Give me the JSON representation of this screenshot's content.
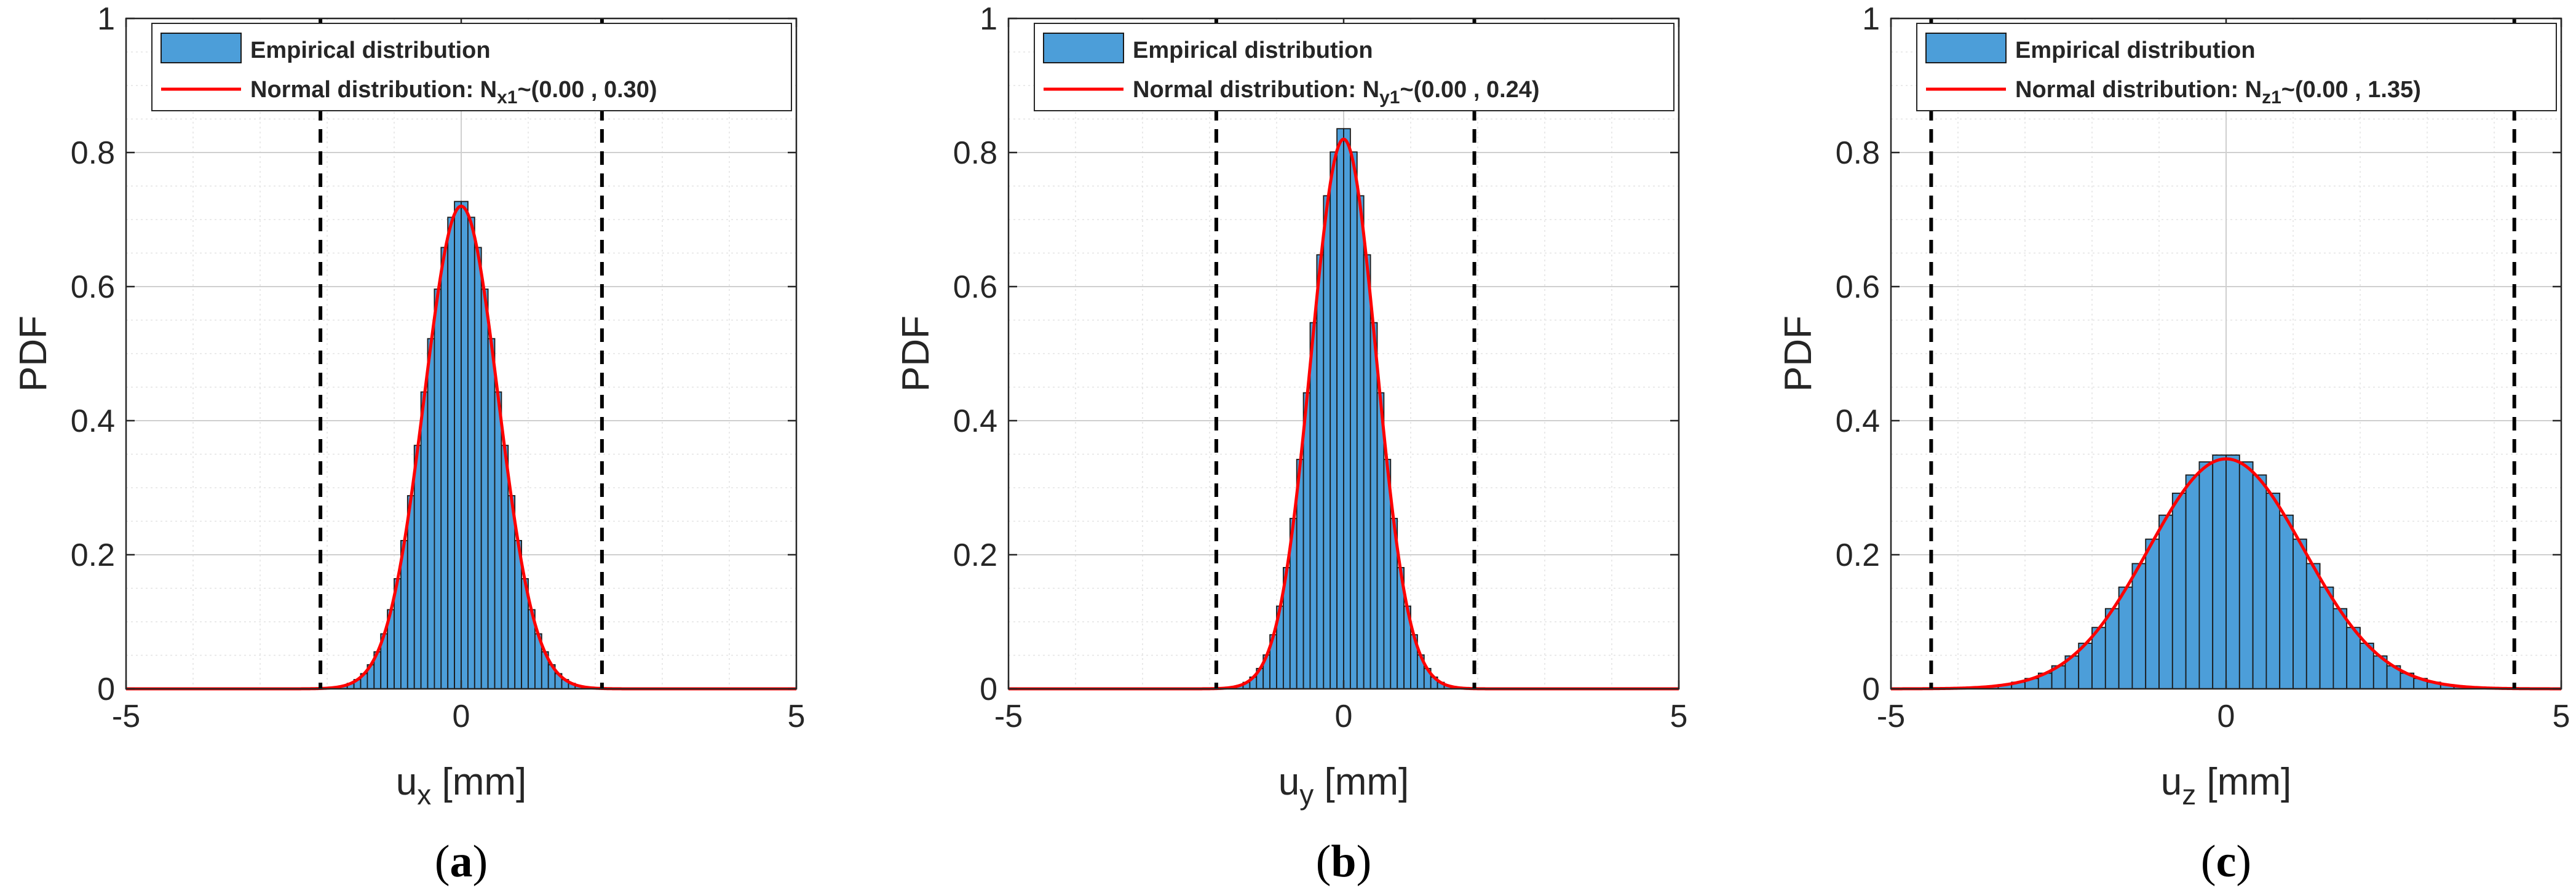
{
  "chart_data": [
    {
      "panel_label_open": "(",
      "panel_letter": "a",
      "panel_label_close": ")",
      "type": "bar",
      "title": "",
      "xlabel_main": "u",
      "xlabel_sub": "x",
      "xlabel_unit": " [mm]",
      "ylabel": "PDF",
      "xlim": [
        -5,
        5
      ],
      "ylim": [
        0,
        1
      ],
      "xticks": [
        -5,
        0,
        5
      ],
      "yticks": [
        0,
        0.2,
        0.4,
        0.6,
        0.8,
        1
      ],
      "xtick_labels": [
        "-5",
        "0",
        "5"
      ],
      "ytick_labels": [
        "0",
        "0.2",
        "0.4",
        "0.6",
        "0.8",
        "1"
      ],
      "grid": true,
      "legend_position": "top-right",
      "legend": {
        "hist_label": "Empirical distribution",
        "line_label_prefix": "Normal distribution: N",
        "line_label_sub": "x1",
        "line_label_suffix": "~(0.00 , 0.30)"
      },
      "histogram": {
        "mean": 0.0,
        "std": 0.55,
        "amplitude": 0.73,
        "bin_width": 0.1,
        "range": [
          -2.0,
          2.0
        ],
        "hist_color": "#4C9ED9",
        "edge_color": "#1a1a1a"
      },
      "fit_curve": {
        "mean": 0.0,
        "std": 0.55,
        "peak": 0.72,
        "color": "#FF0000",
        "range": [
          -5,
          5
        ]
      },
      "dashed_lines_x": [
        -2.1,
        2.1
      ],
      "baseline_range": [
        -5,
        4.45
      ]
    },
    {
      "panel_label_open": "(",
      "panel_letter": "b",
      "panel_label_close": ")",
      "type": "bar",
      "title": "",
      "xlabel_main": "u",
      "xlabel_sub": "y",
      "xlabel_unit": " [mm]",
      "ylabel": "PDF",
      "xlim": [
        -5,
        5
      ],
      "ylim": [
        0,
        1
      ],
      "xticks": [
        -5,
        0,
        5
      ],
      "yticks": [
        0,
        0.2,
        0.4,
        0.6,
        0.8,
        1
      ],
      "xtick_labels": [
        "-5",
        "0",
        "5"
      ],
      "ytick_labels": [
        "0",
        "0.2",
        "0.4",
        "0.6",
        "0.8",
        "1"
      ],
      "grid": true,
      "legend_position": "top-right",
      "legend": {
        "hist_label": "Empirical distribution",
        "line_label_prefix": "Normal distribution: N",
        "line_label_sub": "y1",
        "line_label_suffix": "~(0.00 , 0.24)"
      },
      "histogram": {
        "mean": 0.0,
        "std": 0.485,
        "amplitude": 0.84,
        "bin_width": 0.1,
        "range": [
          -1.7,
          1.7
        ],
        "hist_color": "#4C9ED9",
        "edge_color": "#1a1a1a"
      },
      "fit_curve": {
        "mean": 0.0,
        "std": 0.485,
        "peak": 0.82,
        "color": "#FF0000",
        "range": [
          -5,
          5
        ]
      },
      "dashed_lines_x": [
        -1.9,
        1.95
      ],
      "baseline_range": [
        -5,
        4.05
      ]
    },
    {
      "panel_label_open": "(",
      "panel_letter": "c",
      "panel_label_close": ")",
      "type": "bar",
      "title": "",
      "xlabel_main": "u",
      "xlabel_sub": "z",
      "xlabel_unit": " [mm]",
      "ylabel": "PDF",
      "xlim": [
        -5,
        5
      ],
      "ylim": [
        0,
        1
      ],
      "xticks": [
        -5,
        0,
        5
      ],
      "yticks": [
        0,
        0.2,
        0.4,
        0.6,
        0.8,
        1
      ],
      "xtick_labels": [
        "-5",
        "0",
        "5"
      ],
      "ytick_labels": [
        "0",
        "0.2",
        "0.4",
        "0.6",
        "0.8",
        "1"
      ],
      "grid": true,
      "legend_position": "top-right",
      "legend": {
        "hist_label": "Empirical distribution",
        "line_label_prefix": "Normal distribution: N",
        "line_label_sub": "z1",
        "line_label_suffix": "~(0.00 , 1.35)"
      },
      "histogram": {
        "mean": 0.0,
        "std": 1.16,
        "amplitude": 0.35,
        "bin_width": 0.2,
        "range": [
          -3.6,
          3.8
        ],
        "hist_color": "#4C9ED9",
        "edge_color": "#1a1a1a"
      },
      "fit_curve": {
        "mean": 0.0,
        "std": 1.16,
        "peak": 0.343,
        "color": "#FF0000",
        "range": [
          -5,
          5
        ]
      },
      "dashed_lines_x": [
        -4.4,
        4.3
      ],
      "baseline_range": [
        -5,
        5
      ]
    }
  ]
}
